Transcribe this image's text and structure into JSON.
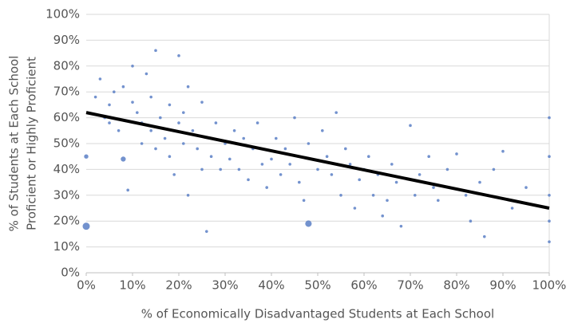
{
  "chart_data": {
    "type": "scatter",
    "x_label": "% of Economically Disadvantaged Students at Each School",
    "y_label": [
      "% of Students at Each School",
      "Proficient or Highly Proficient"
    ],
    "color": "#5a7fc6",
    "x": [
      0,
      0,
      2,
      3,
      4,
      5,
      5,
      6,
      7,
      8,
      8,
      9,
      10,
      10,
      11,
      12,
      12,
      13,
      14,
      14,
      15,
      15,
      16,
      17,
      18,
      18,
      19,
      20,
      20,
      21,
      21,
      22,
      22,
      23,
      24,
      25,
      25,
      26,
      27,
      28,
      29,
      30,
      31,
      32,
      33,
      34,
      35,
      36,
      37,
      38,
      39,
      40,
      41,
      42,
      43,
      44,
      45,
      46,
      47,
      48,
      48,
      50,
      51,
      52,
      53,
      54,
      55,
      56,
      57,
      58,
      59,
      60,
      61,
      62,
      63,
      64,
      65,
      66,
      67,
      68,
      70,
      71,
      72,
      74,
      75,
      76,
      78,
      80,
      82,
      83,
      85,
      86,
      88,
      90,
      92,
      95,
      100,
      100,
      100,
      100,
      100
    ],
    "values": [
      18,
      45,
      68,
      75,
      60,
      65,
      58,
      70,
      55,
      72,
      44,
      32,
      80,
      66,
      62,
      58,
      50,
      77,
      68,
      55,
      86,
      48,
      60,
      52,
      65,
      45,
      38,
      84,
      58,
      62,
      50,
      72,
      30,
      55,
      48,
      66,
      40,
      16,
      45,
      58,
      40,
      50,
      44,
      55,
      40,
      52,
      36,
      48,
      58,
      42,
      33,
      44,
      52,
      38,
      48,
      42,
      60,
      35,
      28,
      50,
      19,
      40,
      55,
      45,
      38,
      62,
      30,
      48,
      42,
      25,
      36,
      40,
      45,
      30,
      38,
      22,
      28,
      42,
      35,
      18,
      57,
      30,
      38,
      45,
      33,
      28,
      40,
      46,
      30,
      20,
      35,
      14,
      40,
      47,
      25,
      33,
      30,
      20,
      12,
      45,
      60
    ],
    "sizes": [
      5,
      3,
      2,
      2,
      2,
      2,
      2,
      2,
      2,
      2,
      3.5,
      2,
      2,
      2,
      2,
      2,
      2,
      2,
      2,
      2,
      2,
      2,
      2,
      2,
      2,
      2,
      2,
      2,
      2,
      2,
      2,
      2,
      2,
      2,
      2,
      2,
      2,
      2,
      2,
      2,
      2,
      2,
      2,
      2,
      2,
      2,
      2,
      2,
      2,
      2,
      2,
      2,
      2,
      2,
      2,
      2,
      2,
      2,
      2,
      2,
      4.5,
      2,
      2,
      2,
      2,
      2,
      2,
      2,
      2,
      2,
      2,
      2,
      2,
      2,
      2,
      2,
      2,
      2,
      2,
      2,
      2,
      2,
      2,
      2,
      2,
      2,
      2,
      2,
      2,
      2,
      2,
      2,
      2,
      2,
      2,
      2,
      2,
      2,
      2,
      2,
      2
    ],
    "trend": {
      "x": [
        0,
        100
      ],
      "values": [
        62,
        25
      ],
      "color": "#000000"
    },
    "xlim": [
      0,
      100
    ],
    "ylim": [
      0,
      100
    ],
    "xticks": [
      {
        "value": 0,
        "label": "0%"
      },
      {
        "value": 10,
        "label": "10%"
      },
      {
        "value": 20,
        "label": "20%"
      },
      {
        "value": 30,
        "label": "30%"
      },
      {
        "value": 40,
        "label": "40%"
      },
      {
        "value": 50,
        "label": "50%"
      },
      {
        "value": 60,
        "label": "60%"
      },
      {
        "value": 70,
        "label": "70%"
      },
      {
        "value": 80,
        "label": "80%"
      },
      {
        "value": 90,
        "label": "90%"
      },
      {
        "value": 100,
        "label": "100%"
      }
    ],
    "yticks": [
      {
        "value": 0,
        "label": "0%"
      },
      {
        "value": 10,
        "label": "10%"
      },
      {
        "value": 20,
        "label": "20%"
      },
      {
        "value": 30,
        "label": "30%"
      },
      {
        "value": 40,
        "label": "40%"
      },
      {
        "value": 50,
        "label": "50%"
      },
      {
        "value": 60,
        "label": "60%"
      },
      {
        "value": 70,
        "label": "70%"
      },
      {
        "value": 80,
        "label": "80%"
      },
      {
        "value": 90,
        "label": "90%"
      },
      {
        "value": 100,
        "label": "100%"
      }
    ],
    "grid": true
  }
}
